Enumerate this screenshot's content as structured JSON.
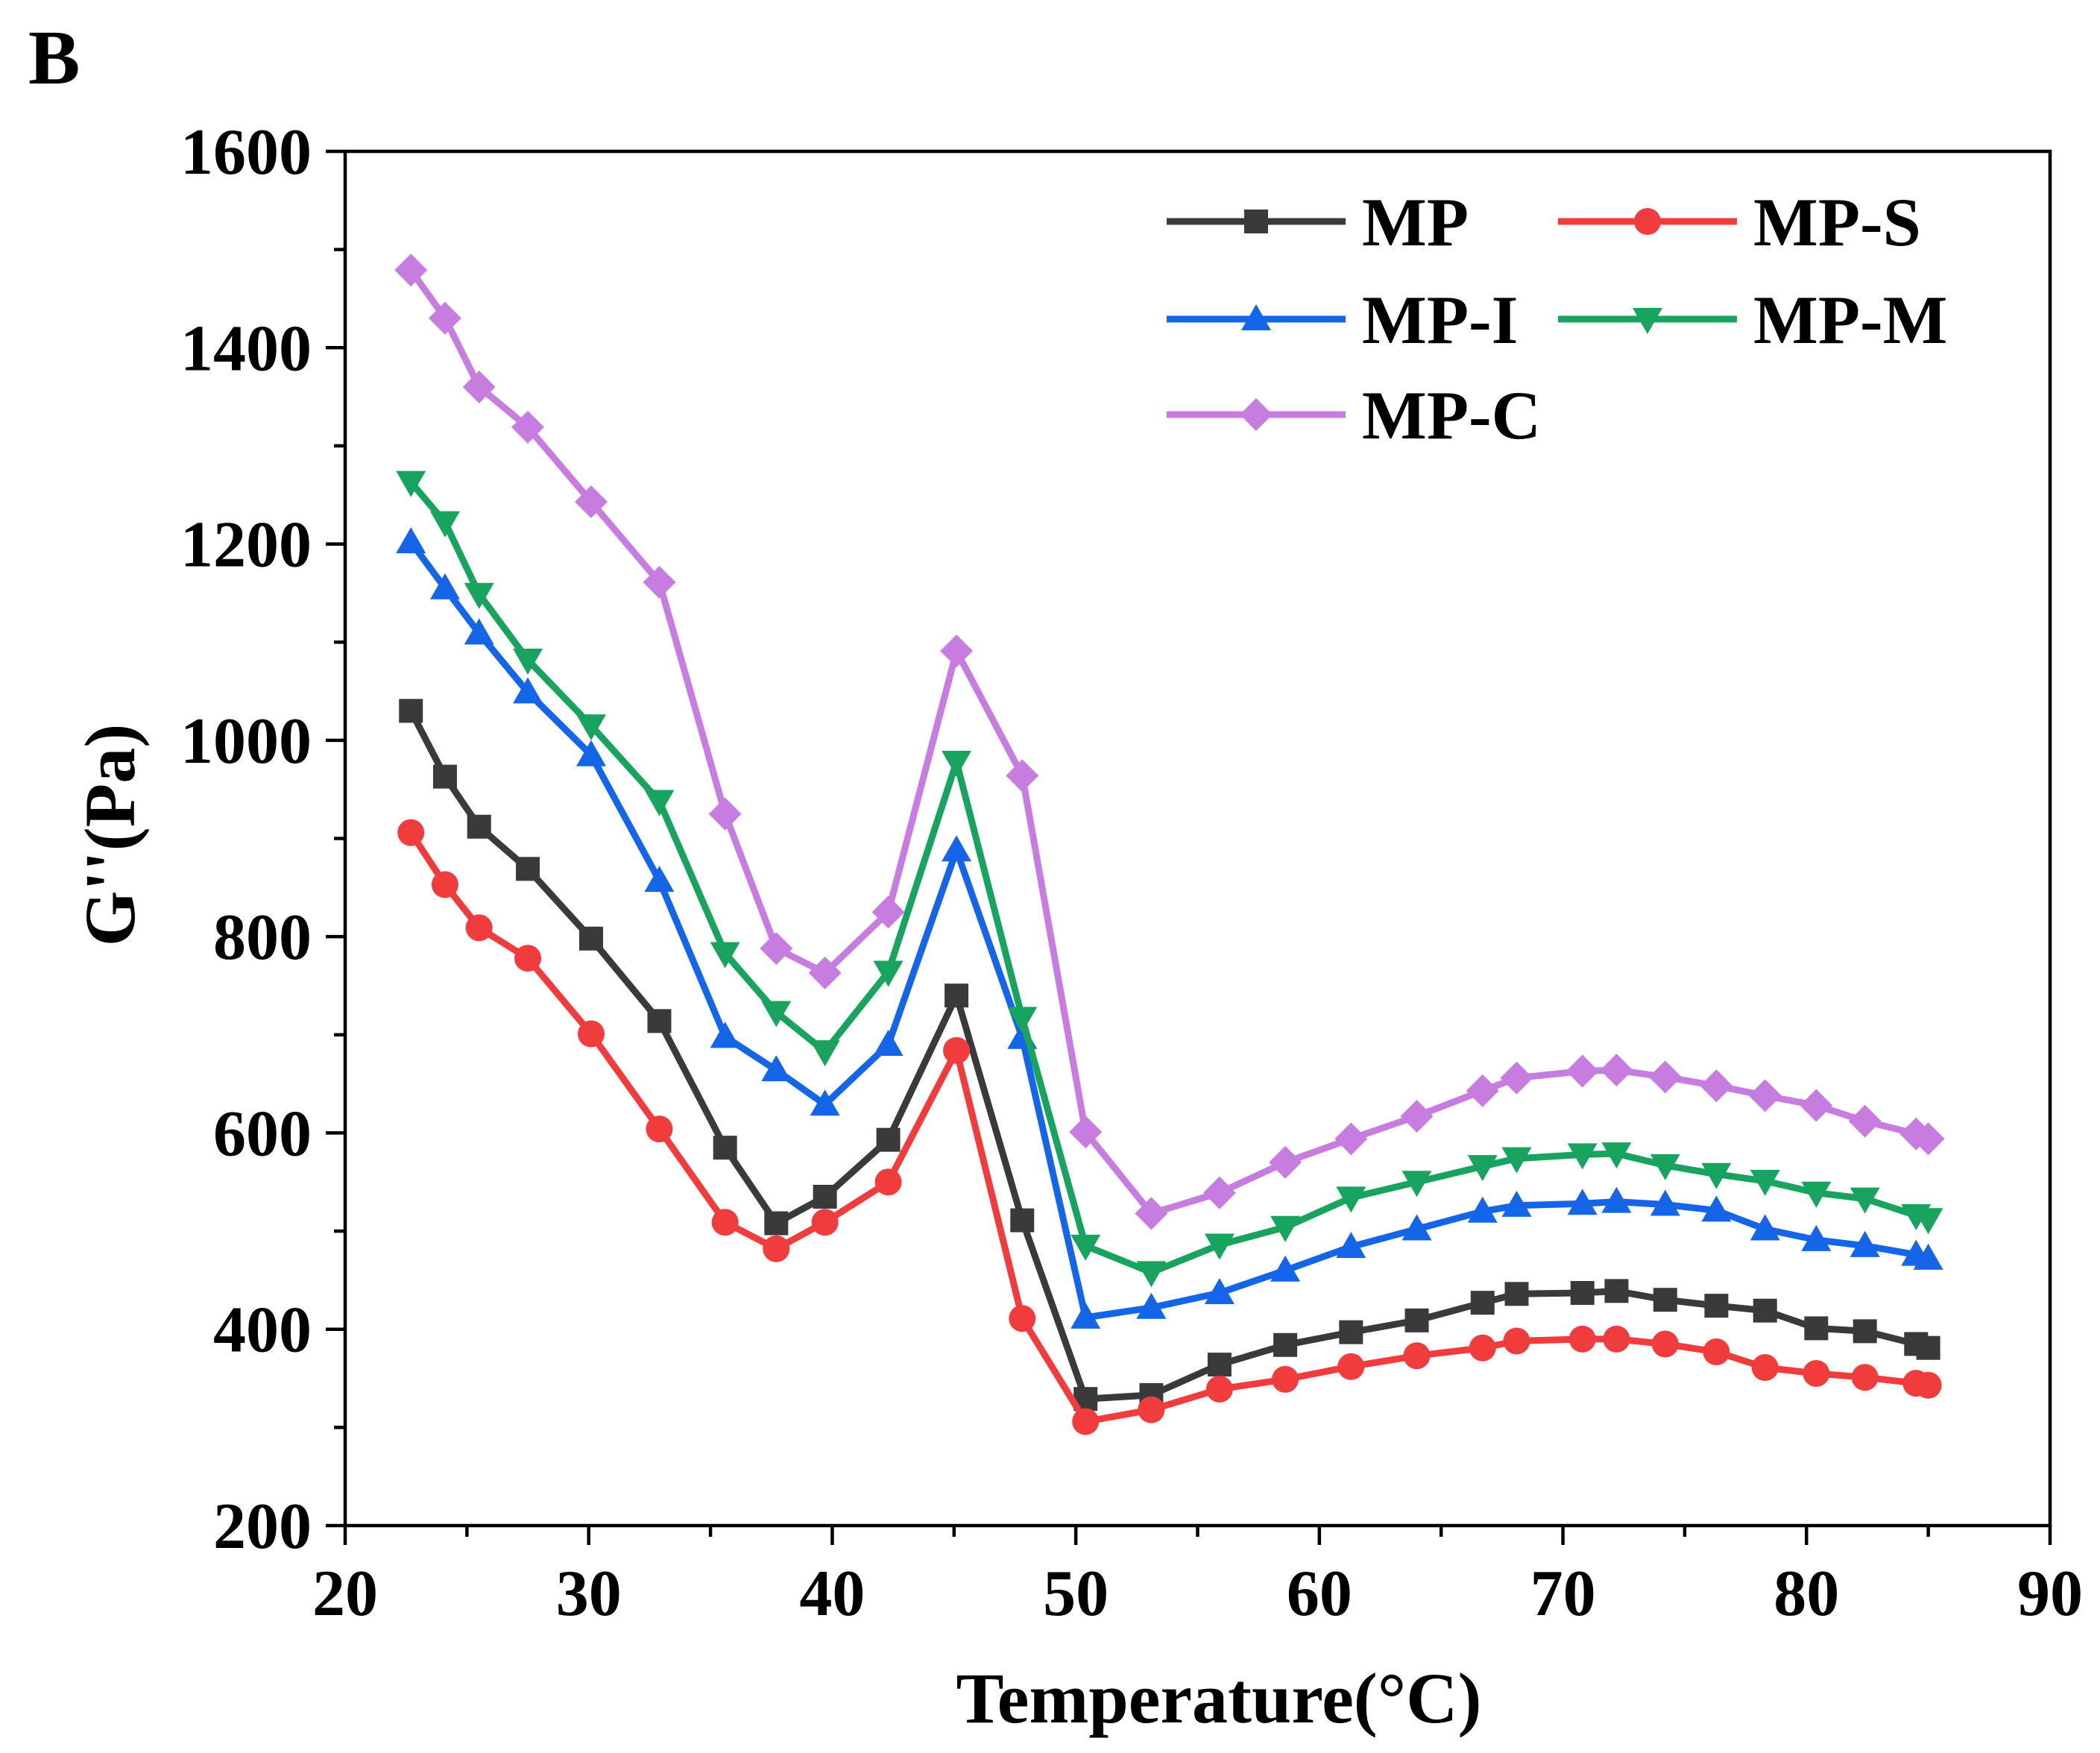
{
  "panel_label": "B",
  "chart_data": {
    "type": "line",
    "title": "",
    "xlabel": "Temperature(°C)",
    "ylabel": "G''(Pa)",
    "xlim": [
      20,
      90
    ],
    "ylim": [
      200,
      1600
    ],
    "xticks": [
      20,
      30,
      40,
      50,
      60,
      70,
      80,
      90
    ],
    "yticks": [
      200,
      400,
      600,
      800,
      1000,
      1200,
      1400,
      1600
    ],
    "xtick_labels": [
      "20",
      "30",
      "40",
      "50",
      "60",
      "70",
      "80",
      "90"
    ],
    "ytick_labels": [
      "200",
      "400",
      "600",
      "800",
      "1000",
      "1200",
      "1400",
      "1600"
    ],
    "grid": false,
    "legend_position": "top-right",
    "x": [
      22.7,
      24.1,
      25.5,
      27.5,
      30.1,
      32.9,
      35.6,
      37.7,
      39.7,
      42.3,
      45.1,
      47.8,
      50.4,
      53.1,
      55.9,
      58.6,
      61.3,
      64,
      66.7,
      68.1,
      70.8,
      72.2,
      74.2,
      76.3,
      78.3,
      80.4,
      82.4,
      84.5,
      85
    ],
    "series": [
      {
        "name": "MP",
        "color": "#3a3a3a",
        "marker": "square",
        "values": [
          1030,
          963,
          912,
          869,
          798,
          714,
          585,
          508,
          535,
          593,
          740,
          511,
          329,
          333,
          364,
          384,
          397,
          409,
          427,
          436,
          437,
          439,
          430,
          424,
          419,
          401,
          398,
          385,
          381
        ]
      },
      {
        "name": "MP-S",
        "color": "#f03c3c",
        "marker": "circle",
        "values": [
          906,
          853,
          809,
          778,
          701,
          604,
          509,
          482,
          509,
          550,
          684,
          411,
          306,
          318,
          339,
          349,
          362,
          373,
          381,
          388,
          390,
          390,
          385,
          377,
          361,
          355,
          351,
          345,
          343
        ]
      },
      {
        "name": "MP-I",
        "color": "#1565e8",
        "marker": "triangle-up",
        "values": [
          1202,
          1155,
          1109,
          1049,
          985,
          857,
          698,
          664,
          629,
          690,
          888,
          697,
          412,
          422,
          437,
          460,
          484,
          502,
          520,
          526,
          528,
          530,
          527,
          521,
          502,
          491,
          485,
          476,
          472
        ]
      },
      {
        "name": "MP-M",
        "color": "#18a35f",
        "marker": "triangle-down",
        "values": [
          1263,
          1222,
          1149,
          1082,
          1015,
          938,
          783,
          723,
          683,
          764,
          978,
          717,
          485,
          458,
          486,
          504,
          534,
          550,
          566,
          574,
          578,
          579,
          567,
          558,
          551,
          539,
          533,
          516,
          512
        ]
      },
      {
        "name": "MP-C",
        "color": "#c77ddf",
        "marker": "diamond",
        "values": [
          1479,
          1430,
          1360,
          1319,
          1243,
          1161,
          925,
          788,
          763,
          825,
          1091,
          964,
          601,
          518,
          539,
          570,
          594,
          617,
          643,
          656,
          663,
          664,
          657,
          648,
          638,
          628,
          612,
          599,
          594
        ]
      }
    ]
  }
}
